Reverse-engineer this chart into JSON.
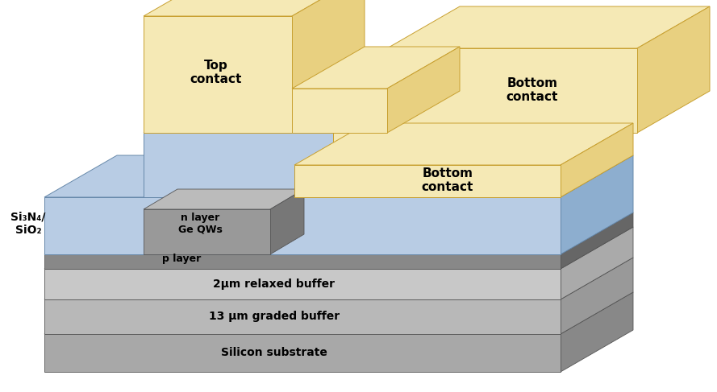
{
  "bg_color": "#ffffff",
  "colors": {
    "blue": "#b8cce4",
    "blue_side": "#8daecf",
    "blue_dark": "#7a99bb",
    "gold": "#f5e9b5",
    "gold_side": "#e8d080",
    "gold_front": "#f0e0a0",
    "gold_edge": "#c8a030",
    "gray_block": "#999999",
    "gray_block_top": "#bbbbbb",
    "gray_block_side": "#777777",
    "p_front": "#888888",
    "p_top": "#aaaaaa",
    "p_side": "#666666",
    "relax_front": "#c8c8c8",
    "relax_top": "#dedede",
    "relax_side": "#aaaaaa",
    "grad_front": "#b8b8b8",
    "grad_top": "#cecece",
    "grad_side": "#999999",
    "sil_front": "#a8a8a8",
    "sil_top": "#c0c0c0",
    "sil_side": "#888888",
    "white": "#ffffff",
    "edge": "#555555",
    "blue_edge": "#6688aa"
  },
  "labels": {
    "top_contact": "Top\ncontact",
    "bottom_contact_upper": "Bottom\ncontact",
    "bottom_contact_lower": "Bottom\ncontact",
    "si3n4": "Si₃N₄/\nSiO₂",
    "n_layer": "n layer\nGe QWs",
    "p_layer": "p layer",
    "relaxed_buffer": "2μm relaxed buffer",
    "graded_buffer": "13 μm graded buffer",
    "substrate": "Silicon substrate"
  }
}
